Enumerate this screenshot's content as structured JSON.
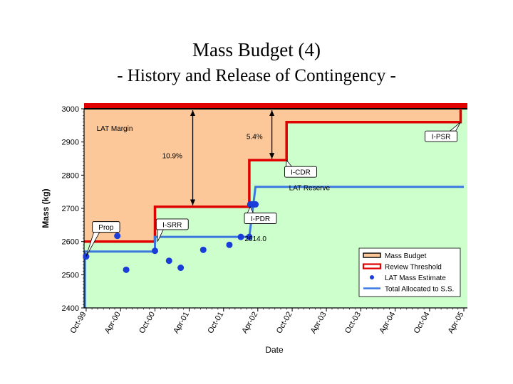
{
  "slide": {
    "title": "Mass Budget (4)",
    "subtitle": "- History and Release of Contingency -"
  },
  "chart_data": {
    "type": "line",
    "xlabel": "Date",
    "ylabel": "Mass (kg)",
    "ylim": [
      2400,
      3000
    ],
    "yticks": [
      2400,
      2500,
      2600,
      2700,
      2800,
      2900,
      3000
    ],
    "xticks": [
      "1999-10-01",
      "2000-04-01",
      "2000-10-01",
      "2001-04-01",
      "2001-10-01",
      "2002-04-01",
      "2002-10-01",
      "2003-04-01",
      "2003-10-01",
      "2004-04-01",
      "2004-10-01",
      "2005-04-01"
    ],
    "xtick_labels": [
      "Oct-99",
      "Apr-00",
      "Oct-00",
      "Apr-01",
      "Oct-01",
      "Apr-02",
      "Oct-02",
      "Apr-03",
      "Oct-03",
      "Apr-04",
      "Oct-04",
      "Apr-05"
    ],
    "xlim": [
      "1999-09-20",
      "2005-04-20"
    ],
    "grid": false,
    "colors": {
      "margin_fill": "#fcc89a",
      "reserve_fill": "#ccffcc",
      "mass_budget": "#e00000",
      "review_threshold": "#e00000",
      "estimate": "#1a3cd8",
      "allocated": "#3a78e0"
    },
    "series": [
      {
        "name": "Mass Budget",
        "kind": "step",
        "points": [
          [
            "1999-09-20",
            3000
          ],
          [
            "2005-04-20",
            3000
          ]
        ]
      },
      {
        "name": "Review Threshold",
        "kind": "step",
        "points": [
          [
            "1999-09-20",
            2600
          ],
          [
            "2000-10-01",
            2600
          ],
          [
            "2000-10-01",
            2705
          ],
          [
            "2002-02-15",
            2705
          ],
          [
            "2002-02-15",
            2845
          ],
          [
            "2002-09-01",
            2845
          ],
          [
            "2002-09-01",
            2960
          ],
          [
            "2005-03-15",
            2960
          ],
          [
            "2005-03-15",
            3000
          ]
        ]
      },
      {
        "name": "LAT Mass Estimate",
        "kind": "scatter",
        "points": [
          [
            "1999-10-01",
            2555
          ],
          [
            "2000-03-15",
            2617
          ],
          [
            "2000-05-01",
            2515
          ],
          [
            "2000-10-01",
            2572
          ],
          [
            "2000-12-15",
            2542
          ],
          [
            "2001-02-15",
            2521
          ],
          [
            "2001-06-15",
            2575
          ],
          [
            "2001-11-01",
            2590
          ],
          [
            "2002-01-01",
            2614
          ],
          [
            "2002-02-15",
            2614
          ],
          [
            "2002-02-20",
            2712
          ],
          [
            "2002-03-01",
            2712
          ],
          [
            "2002-03-10",
            2712
          ],
          [
            "2002-03-20",
            2712
          ]
        ]
      },
      {
        "name": "Total Allocated to S.S.",
        "kind": "step",
        "points": [
          [
            "1999-09-25",
            2400
          ],
          [
            "1999-09-25",
            2570
          ],
          [
            "2000-10-01",
            2570
          ],
          [
            "2000-10-01",
            2614
          ],
          [
            "2002-02-15",
            2614
          ],
          [
            "2002-03-20",
            2765
          ],
          [
            "2005-04-01",
            2765
          ]
        ]
      }
    ],
    "annotations": [
      {
        "text": "LAT Margin",
        "x": "2000-03-01",
        "y": 2942
      },
      {
        "text": "LAT Reserve",
        "x": "2003-01-01",
        "y": 2763
      },
      {
        "text": "10.9%",
        "x": "2001-01-01",
        "y": 2860
      },
      {
        "text": "5.4%",
        "x": "2002-03-15",
        "y": 2918
      },
      {
        "text": "2614.0",
        "x": "2002-03-20",
        "y": 2610
      },
      {
        "text": "Prop",
        "x": "2000-01-15",
        "y": 2644,
        "callout_to": [
          "1999-10-01",
          2555
        ]
      },
      {
        "text": "I-SRR",
        "x": "2001-01-01",
        "y": 2652,
        "callout_to": [
          "2000-10-15",
          2600
        ]
      },
      {
        "text": "I-PDR",
        "x": "2002-04-15",
        "y": 2670,
        "callout_to": [
          "2002-02-20",
          2705
        ]
      },
      {
        "text": "I-CDR",
        "x": "2002-11-15",
        "y": 2810,
        "callout_to": [
          "2002-09-01",
          2845
        ]
      },
      {
        "text": "I-PSR",
        "x": "2004-12-01",
        "y": 2917,
        "callout_to": [
          "2005-03-15",
          2960
        ]
      }
    ],
    "arrows": [
      {
        "label": "10.9%",
        "x": "2001-04-20",
        "from": 3000,
        "to": 2705
      },
      {
        "label": "5.4%",
        "x": "2002-06-15",
        "from": 3000,
        "to": 2845
      }
    ],
    "legend": {
      "placement": "bottom-right",
      "entries": [
        "Mass Budget",
        "Review Threshold",
        "LAT Mass Estimate",
        "Total Allocated to S.S."
      ]
    }
  }
}
